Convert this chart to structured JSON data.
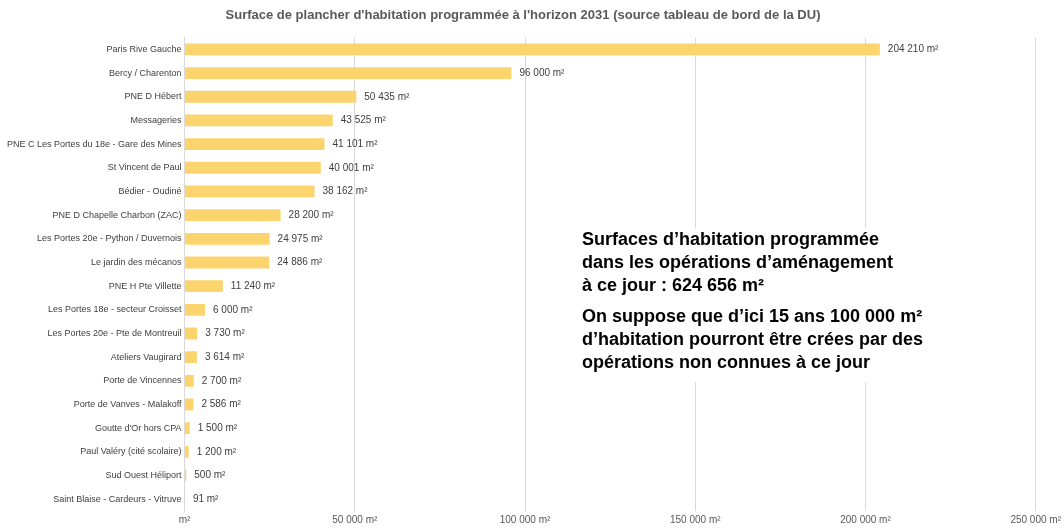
{
  "chart_data": {
    "type": "bar",
    "orientation": "horizontal",
    "title": "Surface de plancher d'habitation programmée à l'horizon 2031 (source tableau de bord de la DU)",
    "categories": [
      "Paris Rive Gauche",
      "Bercy / Charenton",
      "PNE D Hébert",
      "Messageries",
      "PNE C Les Portes du 18e - Gare des Mines",
      "St Vincent de Paul",
      "Bédier - Oudiné",
      "PNE D Chapelle Charbon (ZAC)",
      "Les Portes 20e - Python / Duvernois",
      "Le jardin des mécanos",
      "PNE H Pte Villette",
      "Les Portes 18e - secteur Croisset",
      "Les Portes 20e - Pte de Montreuil",
      "Ateliers Vaugirard",
      "Porte de Vincennes",
      "Porte de Vanves - Malakoff",
      "Goutte d'Or hors CPA",
      "Paul Valéry (cité scolaire)",
      "Sud Ouest Héliport",
      "Saint Blaise - Cardeurs - Vitruve"
    ],
    "values": [
      204210,
      96000,
      50435,
      43525,
      41101,
      40001,
      38162,
      28200,
      24975,
      24886,
      11240,
      6000,
      3730,
      3614,
      2700,
      2586,
      1500,
      1200,
      500,
      91
    ],
    "value_labels": [
      "204 210 m²",
      "96 000 m²",
      "50 435 m²",
      "43 525 m²",
      "41 101 m²",
      "40 001 m²",
      "38 162 m²",
      "28 200 m²",
      "24 975 m²",
      "24 886 m²",
      "11 240 m²",
      "6 000 m²",
      "3 730 m²",
      "3 614 m²",
      "2 700 m²",
      "2 586 m²",
      "1 500 m²",
      "1 200 m²",
      "500 m²",
      "91 m²"
    ],
    "color": "#fbd46d",
    "xlim": [
      0,
      250000
    ],
    "xticks": [
      {
        "value": 0,
        "label": "m²"
      },
      {
        "value": 50000,
        "label": "50 000 m²"
      },
      {
        "value": 100000,
        "label": "100 000 m²"
      },
      {
        "value": 150000,
        "label": "150 000 m²"
      },
      {
        "value": 200000,
        "label": "200 000 m²"
      },
      {
        "value": 250000,
        "label": "250 000 m²"
      }
    ],
    "grid": "x",
    "legend": false,
    "annotations": [
      "Surfaces d’habitation programmée\ndans les opérations d’aménagement\nà ce jour : 624 656 m²",
      "On suppose que d’ici 15 ans 100 000 m²\nd’habitation pourront être crées par des\nopérations non connues à ce jour"
    ]
  }
}
